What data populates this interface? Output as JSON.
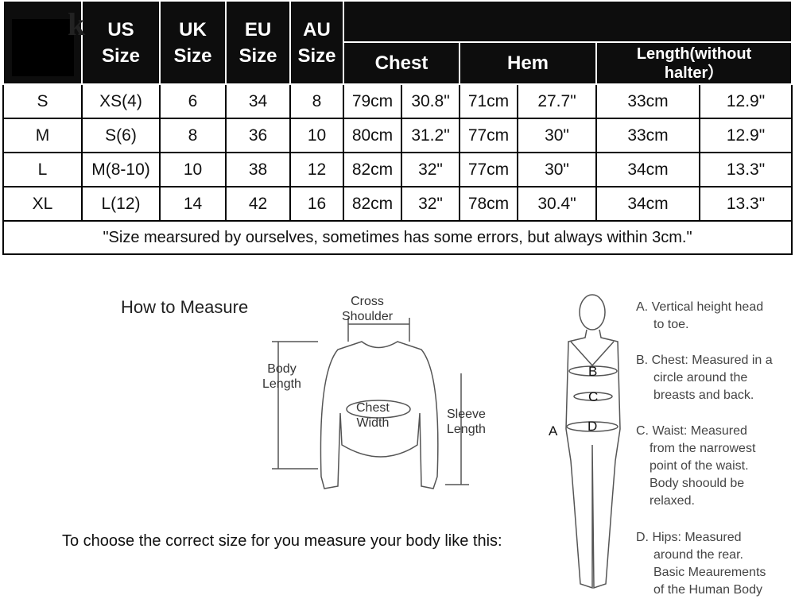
{
  "table": {
    "headers": {
      "us": [
        "US",
        "Size"
      ],
      "uk": [
        "UK",
        "Size"
      ],
      "eu": [
        "EU",
        "Size"
      ],
      "au": [
        "AU",
        "Size"
      ],
      "chest": "Chest",
      "hem": "Hem",
      "length": [
        "Length(without",
        "halter）"
      ]
    },
    "rows": [
      [
        "S",
        "XS(4)",
        "6",
        "34",
        "8",
        "79cm",
        "30.8\"",
        "71cm",
        "27.7\"",
        "33cm",
        "12.9\""
      ],
      [
        "M",
        "S(6)",
        "8",
        "36",
        "10",
        "80cm",
        "31.2\"",
        "77cm",
        "30\"",
        "33cm",
        "12.9\""
      ],
      [
        "L",
        "M(8-10)",
        "10",
        "38",
        "12",
        "82cm",
        "32\"",
        "77cm",
        "30\"",
        "34cm",
        "13.3\""
      ],
      [
        "XL",
        "L(12)",
        "14",
        "42",
        "16",
        "82cm",
        "32\"",
        "78cm",
        "30.4\"",
        "34cm",
        "13.3\""
      ]
    ],
    "note": "\"Size mearsured by ourselves, sometimes has some errors, but always within 3cm.\""
  },
  "how_to_measure": "How to Measure",
  "garment_labels": {
    "cross_shoulder": [
      "Cross",
      "Shoulder"
    ],
    "body_length": [
      "Body",
      "Length"
    ],
    "chest_width": [
      "Chest",
      "Width"
    ],
    "sleeve_length": [
      "Sleeve",
      "Length"
    ]
  },
  "choose_text": "To choose the correct size for you measure your body like this:",
  "body_labels": {
    "a": "A",
    "b": "B",
    "c": "C",
    "d": "D"
  },
  "descriptions": [
    [
      "A. Vertical height head",
      "to toe."
    ],
    [
      "B. Chest: Measured in a",
      "circle around the",
      "breasts and back."
    ],
    [
      "C. Waist: Measured",
      "from the narrowest",
      "point of the waist.",
      "Body shoould be",
      "relaxed."
    ],
    [
      "D. Hips: Measured",
      "around the rear.",
      "Basic Meaurements",
      "of the Human Body"
    ]
  ]
}
